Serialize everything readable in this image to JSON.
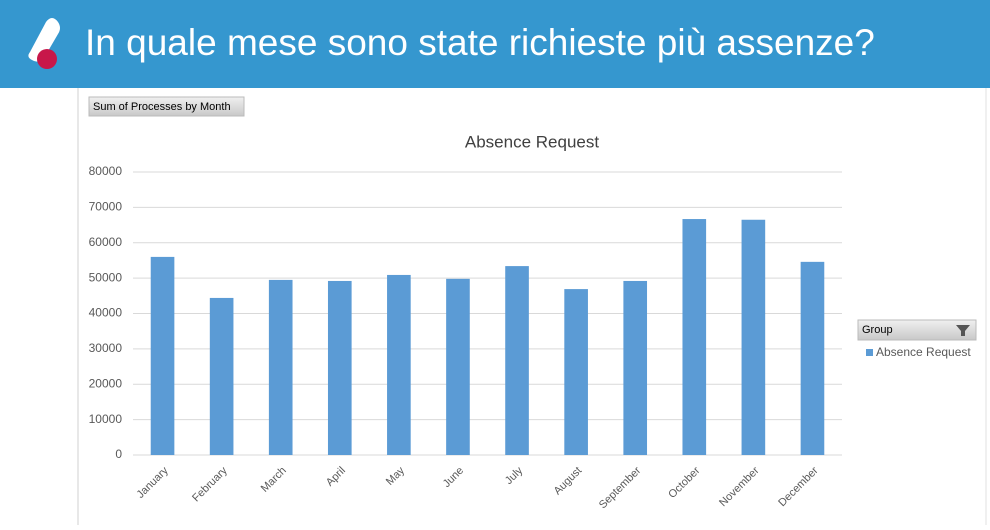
{
  "header": {
    "title": "In quale mese sono state richieste più assenze?"
  },
  "chart_data": {
    "type": "bar",
    "title": "Absence Request",
    "field_button": "Sum of Processes by Month",
    "legend_title": "Group",
    "categories": [
      "January",
      "February",
      "March",
      "April",
      "May",
      "June",
      "July",
      "August",
      "September",
      "October",
      "November",
      "December"
    ],
    "series": [
      {
        "name": "Absence Request",
        "color": "#5b9bd5",
        "values": [
          56000,
          44400,
          49500,
          49200,
          50900,
          49800,
          53400,
          46900,
          49200,
          66700,
          66500,
          54600
        ]
      }
    ],
    "ylim": [
      0,
      80000
    ],
    "yticks": [
      0,
      10000,
      20000,
      30000,
      40000,
      50000,
      60000,
      70000,
      80000
    ],
    "grid": true
  }
}
